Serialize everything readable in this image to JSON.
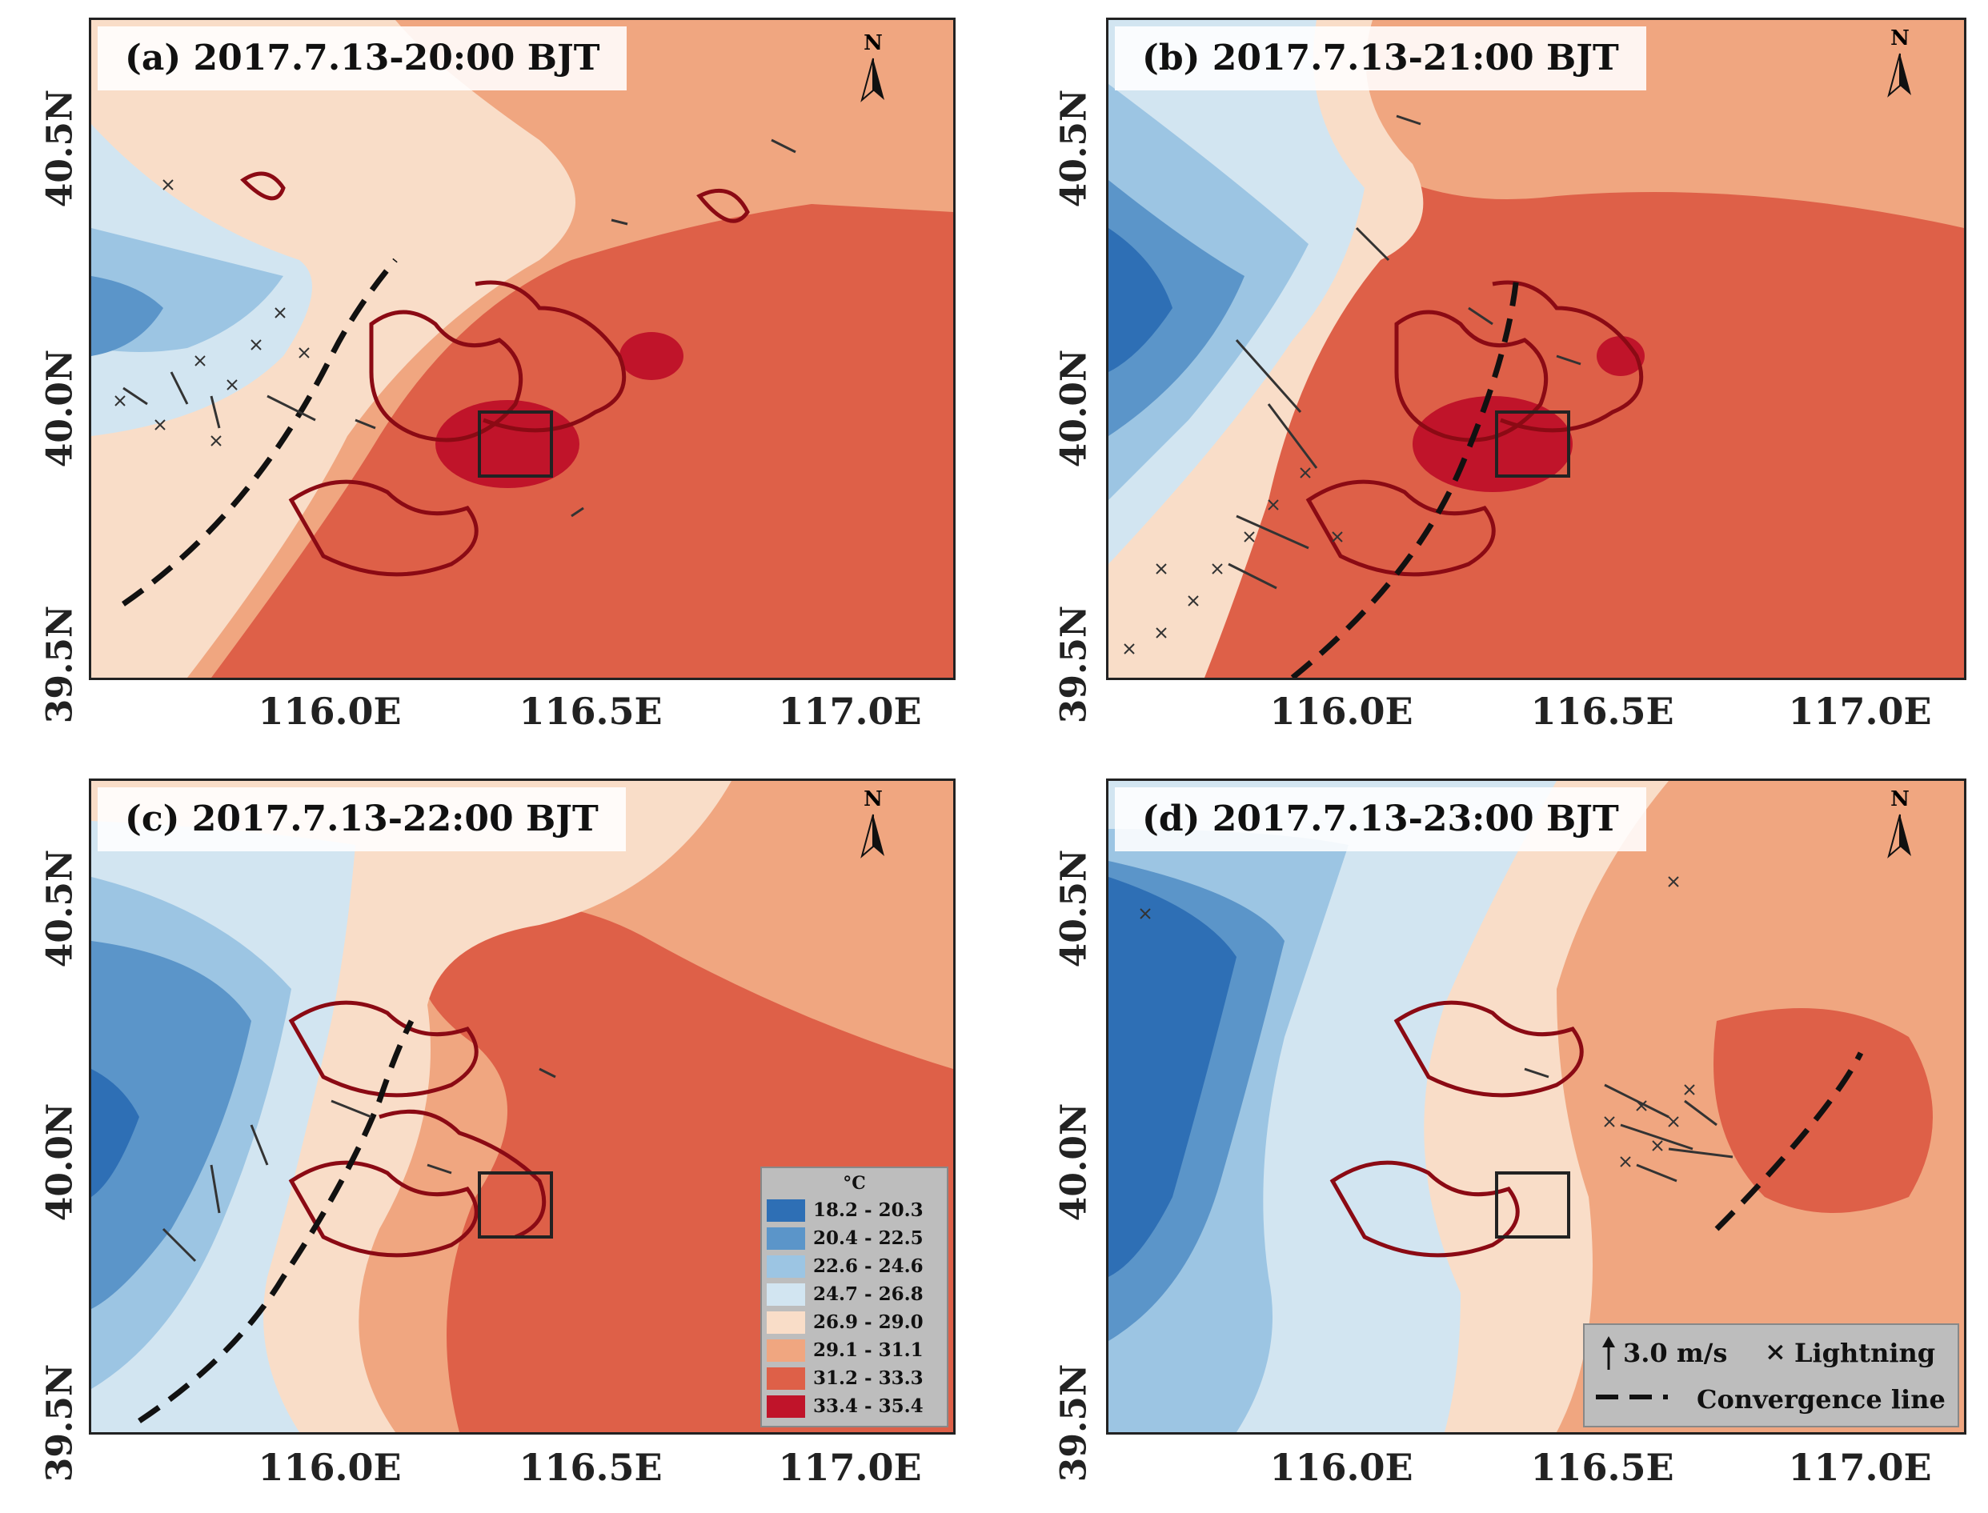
{
  "panels": [
    {
      "id": "a",
      "title": "(a)  2017.7.13-20:00 BJT"
    },
    {
      "id": "b",
      "title": "(b)  2017.7.13-21:00 BJT"
    },
    {
      "id": "c",
      "title": "(c)  2017.7.13-22:00 BJT"
    },
    {
      "id": "d",
      "title": "(d)  2017.7.13-23:00 BJT"
    }
  ],
  "axes": {
    "y_ticks": [
      "40.5N",
      "40.0N",
      "39.5N"
    ],
    "x_ticks": [
      "116.0E",
      "116.5E",
      "117.0E"
    ],
    "north_label": "N"
  },
  "legend": {
    "unit": "°C",
    "classes": [
      {
        "label": "18.2 - 20.3",
        "color": "#2e6fb5"
      },
      {
        "label": "20.4 - 22.5",
        "color": "#5b95c9"
      },
      {
        "label": "22.6 - 24.6",
        "color": "#9cc5e3"
      },
      {
        "label": "24.7 - 26.8",
        "color": "#d2e5f1"
      },
      {
        "label": "26.9 - 29.0",
        "color": "#f9ddc8"
      },
      {
        "label": "29.1 - 31.1",
        "color": "#f0a680"
      },
      {
        "label": "31.2 - 33.3",
        "color": "#de6048"
      },
      {
        "label": "33.4 - 35.4",
        "color": "#c0142a"
      }
    ]
  },
  "key": {
    "wind_label": "3.0 m/s",
    "lightning_label": "Lightning",
    "convergence_label": "Convergence line"
  }
}
